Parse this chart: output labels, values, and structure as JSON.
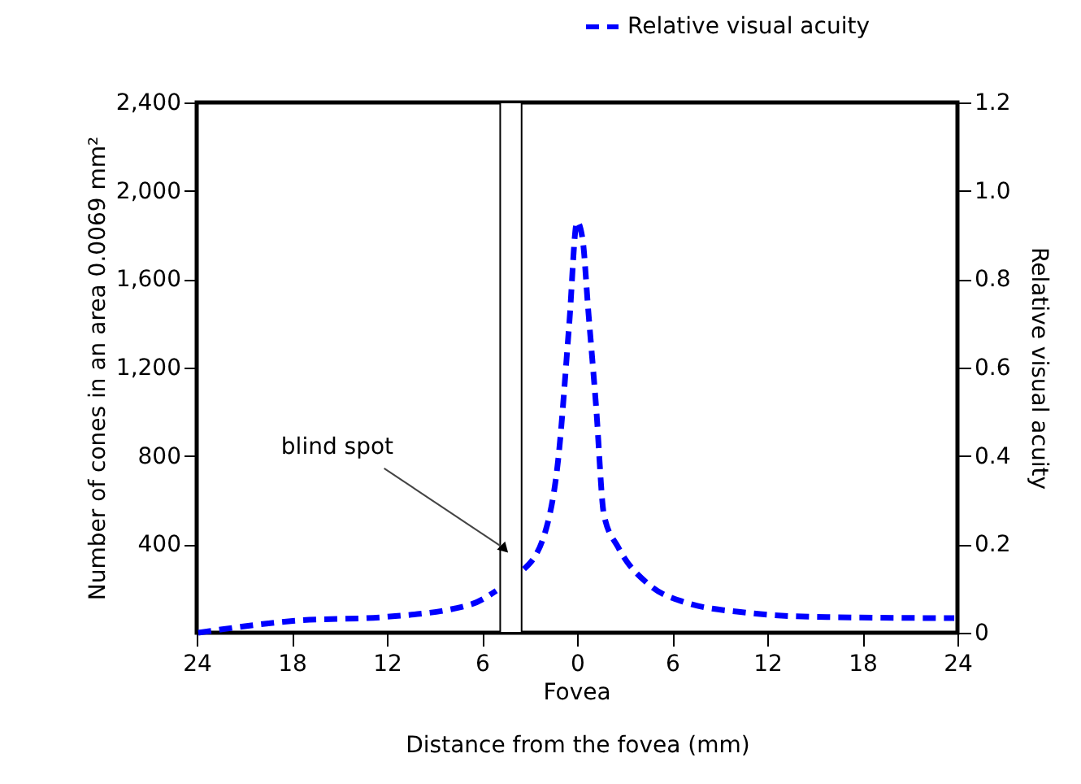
{
  "chart_data": {
    "type": "line",
    "xlabel": "Distance from the fovea (mm)",
    "ylabel": "Number of cones in an area 0.0069 mm²",
    "y2label": "Relative visual acuity",
    "xlim": [
      -24,
      24
    ],
    "xticks": [
      {
        "value": -24,
        "label": "24"
      },
      {
        "value": -18,
        "label": "18"
      },
      {
        "value": -12,
        "label": "12"
      },
      {
        "value": -6,
        "label": "6"
      },
      0,
      6,
      12,
      18,
      24
    ],
    "ylim": [
      0,
      2400
    ],
    "yticks": [
      400,
      800,
      {
        "value": 1200,
        "label": "1,200"
      },
      {
        "value": 1600,
        "label": "1,600"
      },
      {
        "value": 2000,
        "label": "2,000"
      },
      {
        "value": 2400,
        "label": "2,400"
      }
    ],
    "y2lim": [
      0,
      1.2
    ],
    "y2ticks": [
      0,
      0.2,
      0.4,
      0.6,
      0.8,
      {
        "value": 1,
        "label": "1.0"
      },
      1.2
    ],
    "series": [
      {
        "name": "Relative visual acuity",
        "color": "#0000ff",
        "axis": "y2",
        "line_style": "dashed",
        "x": [
          -23.9,
          -17.8,
          -12,
          -6.7,
          -5.1,
          null,
          -3.35,
          -1.9,
          -1.2,
          -0.5,
          0,
          0.35,
          0.7,
          1.2,
          1.7,
          2.6,
          4.6,
          6.7,
          10.8,
          14.9,
          23.8
        ],
        "values": [
          0,
          0.027,
          0.036,
          0.064,
          0.095,
          null,
          0.144,
          0.242,
          0.389,
          0.696,
          0.93,
          0.89,
          0.732,
          0.512,
          0.266,
          0.193,
          0.107,
          0.07,
          0.045,
          0.036,
          0.033
        ]
      }
    ],
    "bands": [
      {
        "axis": "x",
        "from": -4.85,
        "to": -3.5,
        "label": "blind spot",
        "color": "#ffffff"
      }
    ],
    "annotations": [
      "Fovea"
    ],
    "legend": "top right",
    "grid": false,
    "marker": "none"
  }
}
